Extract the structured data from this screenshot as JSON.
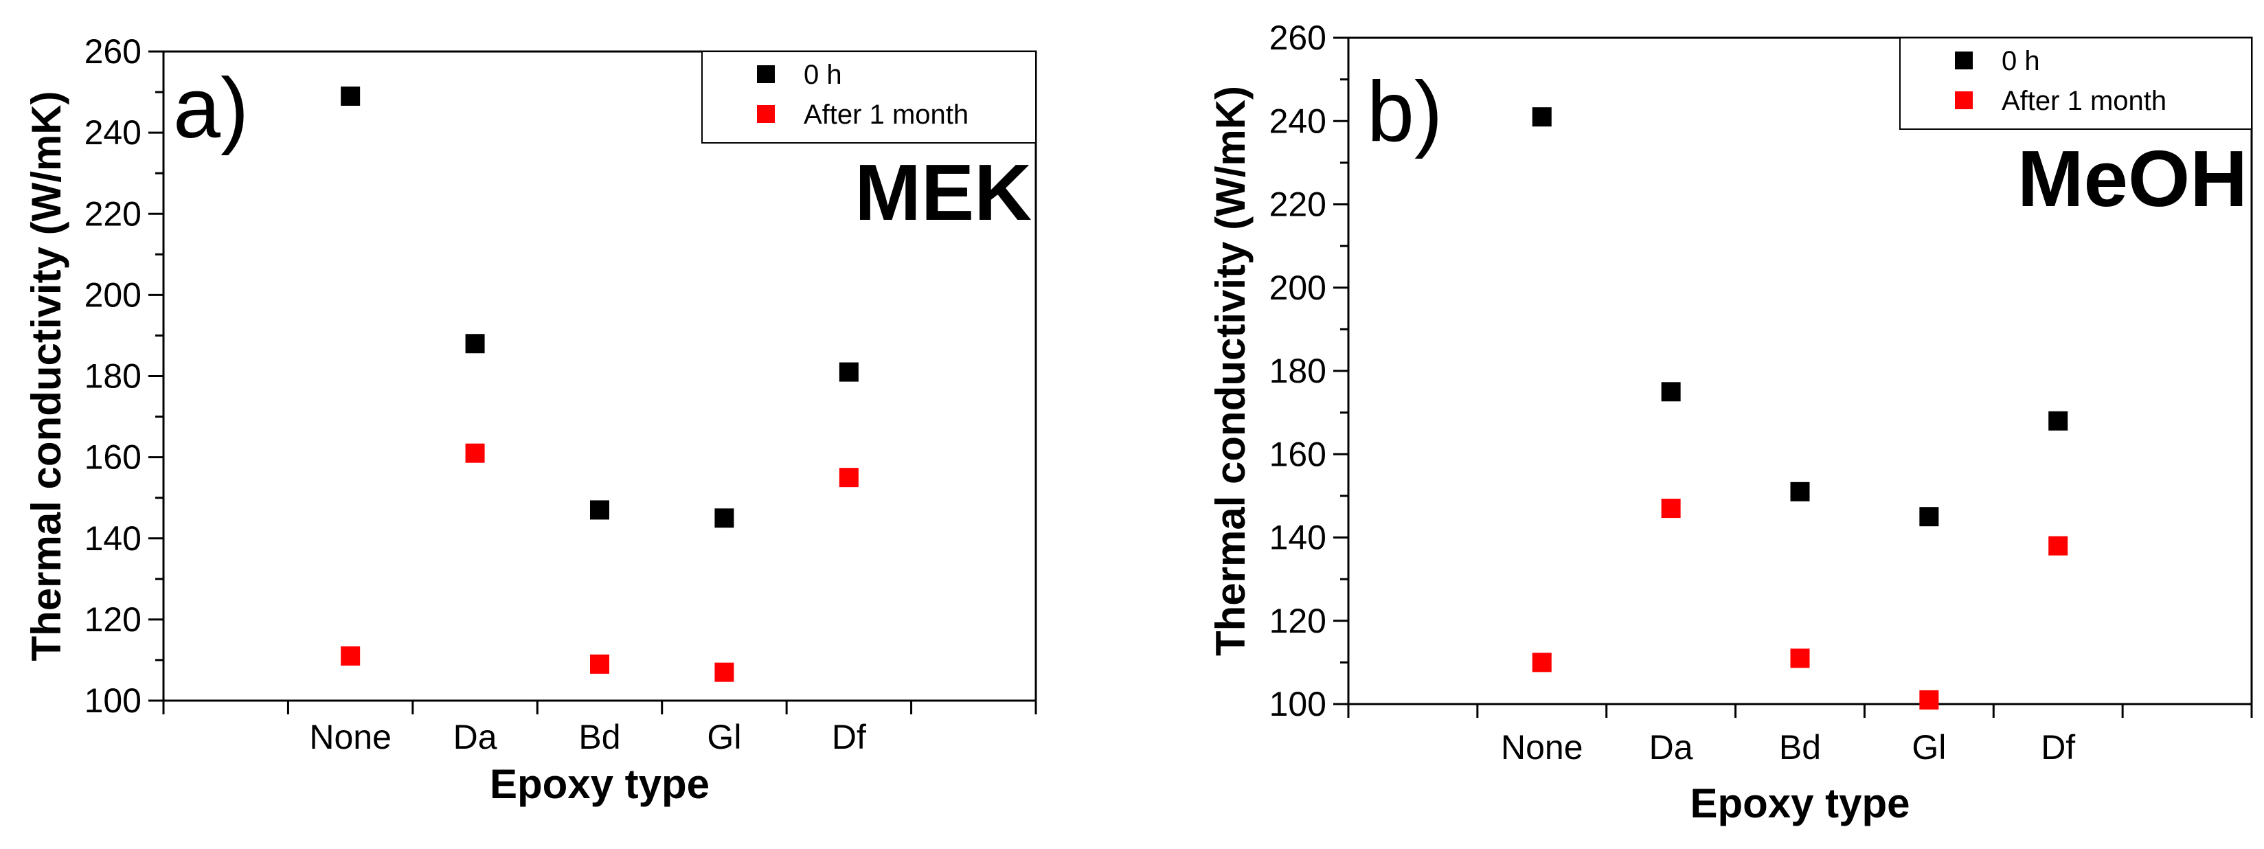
{
  "chart_data": [
    {
      "type": "scatter",
      "panel": "a)",
      "solvent": "MEK",
      "xlabel": "Epoxy type",
      "ylabel": "Thermal conductivity (W/mK)",
      "categories": [
        "None",
        "Da",
        "Bd",
        "Gl",
        "Df"
      ],
      "ylim": [
        100,
        260
      ],
      "yticks": [
        100,
        120,
        140,
        160,
        180,
        200,
        220,
        240,
        260
      ],
      "legend_position": "top-right",
      "series": [
        {
          "name": "0 h",
          "color": "#000000",
          "values": [
            249,
            188,
            147,
            145,
            181
          ]
        },
        {
          "name": "After 1 month",
          "color": "#ff0000",
          "values": [
            111,
            161,
            109,
            107,
            155
          ]
        }
      ]
    },
    {
      "type": "scatter",
      "panel": "b)",
      "solvent": "MeOH",
      "xlabel": "Epoxy type",
      "ylabel": "Thermal conductivity (W/mK)",
      "categories": [
        "None",
        "Da",
        "Bd",
        "Gl",
        "Df"
      ],
      "ylim": [
        100,
        260
      ],
      "yticks": [
        100,
        120,
        140,
        160,
        180,
        200,
        220,
        240,
        260
      ],
      "legend_position": "top-right",
      "series": [
        {
          "name": "0 h",
          "color": "#000000",
          "values": [
            241,
            175,
            151,
            145,
            168
          ]
        },
        {
          "name": "After 1 month",
          "color": "#ff0000",
          "values": [
            110,
            147,
            111,
            101,
            138
          ]
        }
      ]
    }
  ]
}
